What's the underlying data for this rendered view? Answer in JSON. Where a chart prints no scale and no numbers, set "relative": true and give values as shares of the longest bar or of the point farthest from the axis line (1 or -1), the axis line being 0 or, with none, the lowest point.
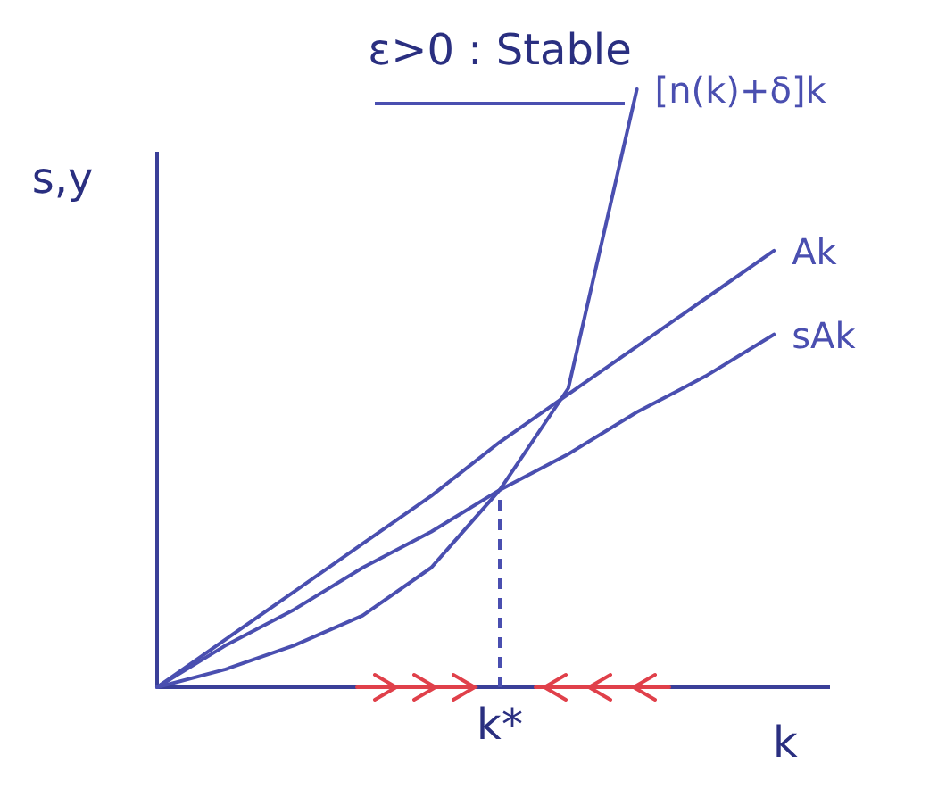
{
  "chart_data": {
    "type": "line",
    "title": "ε>0 : Stable",
    "xlabel": "k",
    "ylabel": "s,y",
    "relative": true,
    "categories": [
      null,
      null,
      null,
      null,
      null,
      null,
      null,
      null,
      null,
      null
    ],
    "series": [
      {
        "name": "[n(k)+δ]k",
        "color": "#4a4fb0",
        "values": [
          0,
          0.03,
          0.07,
          0.12,
          0.2,
          0.33,
          0.5,
          1,
          null,
          null
        ]
      },
      {
        "name": "Ak",
        "color": "#4a4fb0",
        "values": [
          0,
          0.08,
          0.16,
          0.24,
          0.32,
          0.41,
          0.49,
          0.57,
          0.65,
          0.73
        ]
      },
      {
        "name": "sAk",
        "color": "#4a4fb0",
        "values": [
          0,
          0.07,
          0.13,
          0.2,
          0.26,
          0.33,
          0.39,
          0.46,
          0.52,
          0.59
        ]
      }
    ],
    "annotations": [
      "k*"
    ]
  }
}
